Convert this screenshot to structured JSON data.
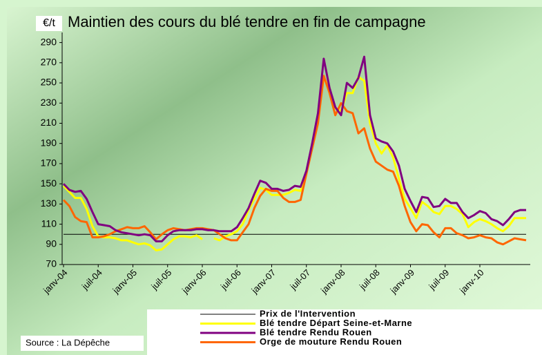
{
  "chart_data": {
    "type": "line",
    "title": "Maintien des cours du blé tendre en fin de campagne",
    "y_label": "€/t",
    "source": "Source : La Dépêche",
    "categories": [
      "janv-04",
      null,
      null,
      null,
      null,
      null,
      "juil-04",
      null,
      null,
      null,
      null,
      null,
      "janv-05",
      null,
      null,
      null,
      null,
      null,
      "juil-05",
      null,
      null,
      null,
      null,
      null,
      "janv-06",
      null,
      null,
      null,
      null,
      null,
      "juil-06",
      null,
      null,
      null,
      null,
      null,
      "janv-07",
      null,
      null,
      null,
      null,
      null,
      "juil-07",
      null,
      null,
      null,
      null,
      null,
      "janv-08",
      null,
      null,
      null,
      null,
      null,
      "juil-08",
      null,
      null,
      null,
      null,
      null,
      "janv-09",
      null,
      null,
      null,
      null,
      null,
      "juil-09",
      null,
      null,
      null,
      null,
      null,
      "janv-10",
      null,
      null,
      null,
      null,
      null,
      null,
      null,
      null
    ],
    "ylim": [
      70,
      300
    ],
    "yticks": [
      70,
      90,
      110,
      130,
      150,
      170,
      190,
      210,
      230,
      250,
      270,
      290
    ],
    "series": [
      {
        "name": "Prix de l'Intervention",
        "color": "#000000",
        "width": 1,
        "values": [
          100,
          100,
          100,
          100,
          100,
          100,
          100,
          100,
          100,
          100,
          100,
          100,
          100,
          100,
          100,
          100,
          100,
          100,
          100,
          100,
          100,
          100,
          100,
          100,
          100,
          100,
          100,
          100,
          100,
          100,
          100,
          100,
          100,
          100,
          100,
          100,
          100,
          100,
          100,
          100,
          100,
          100,
          100,
          100,
          100,
          100,
          100,
          100,
          100,
          100,
          100,
          100,
          100,
          100,
          100,
          100,
          100,
          100,
          100,
          100,
          100,
          100,
          100,
          100,
          100,
          100,
          100,
          100,
          100,
          100,
          100,
          100,
          100,
          100,
          100,
          100,
          100,
          100,
          100,
          100,
          100
        ]
      },
      {
        "name": "Blé tendre Départ Seine-et-Marne",
        "color": "#ffff00",
        "width": 3,
        "values": [
          148,
          142,
          136,
          136,
          125,
          108,
          98,
          97,
          97,
          96,
          94,
          94,
          92,
          90,
          91,
          89,
          84,
          85,
          90,
          95,
          98,
          98,
          97,
          99,
          95,
          null,
          96,
          94,
          98,
          100,
          103,
          110,
          124,
          135,
          146,
          144,
          139,
          139,
          139,
          141,
          144,
          143,
          160,
          188,
          215,
          255,
          245,
          225,
          222,
          240,
          240,
          256,
          252,
          210,
          190,
          180,
          188,
          176,
          155,
          135,
          126,
          116,
          132,
          128,
          122,
          120,
          128,
          128,
          125,
          120,
          107,
          112,
          115,
          113,
          110,
          106,
          103,
          108,
          116,
          116,
          116
        ]
      },
      {
        "name": "Blé tendre Rendu Rouen",
        "color": "#800080",
        "width": 3,
        "values": [
          150,
          144,
          142,
          143,
          135,
          122,
          110,
          109,
          108,
          104,
          102,
          101,
          100,
          99,
          100,
          99,
          93,
          93,
          99,
          103,
          104,
          104,
          104,
          105,
          105,
          104,
          104,
          103,
          103,
          103,
          107,
          116,
          126,
          140,
          153,
          151,
          145,
          145,
          143,
          144,
          148,
          147,
          163,
          190,
          220,
          274,
          245,
          226,
          218,
          250,
          245,
          255,
          276,
          218,
          195,
          192,
          190,
          182,
          168,
          145,
          133,
          122,
          137,
          136,
          127,
          128,
          135,
          131,
          131,
          122,
          116,
          119,
          123,
          121,
          115,
          113,
          109,
          115,
          122,
          124,
          124
        ]
      },
      {
        "name": "Orge de mouture Rendu Rouen",
        "color": "#ff6600",
        "width": 3,
        "values": [
          134,
          128,
          117,
          113,
          112,
          97,
          97,
          98,
          100,
          103,
          105,
          107,
          106,
          106,
          108,
          102,
          95,
          100,
          104,
          106,
          105,
          104,
          105,
          106,
          106,
          105,
          104,
          100,
          96,
          94,
          94,
          102,
          110,
          126,
          138,
          145,
          143,
          143,
          136,
          132,
          132,
          134,
          160,
          185,
          210,
          257,
          240,
          218,
          230,
          222,
          220,
          200,
          205,
          185,
          172,
          168,
          164,
          162,
          148,
          128,
          112,
          103,
          110,
          109,
          102,
          97,
          106,
          106,
          101,
          99,
          96,
          97,
          99,
          97,
          96,
          92,
          90,
          93,
          96,
          95,
          94
        ]
      }
    ]
  }
}
